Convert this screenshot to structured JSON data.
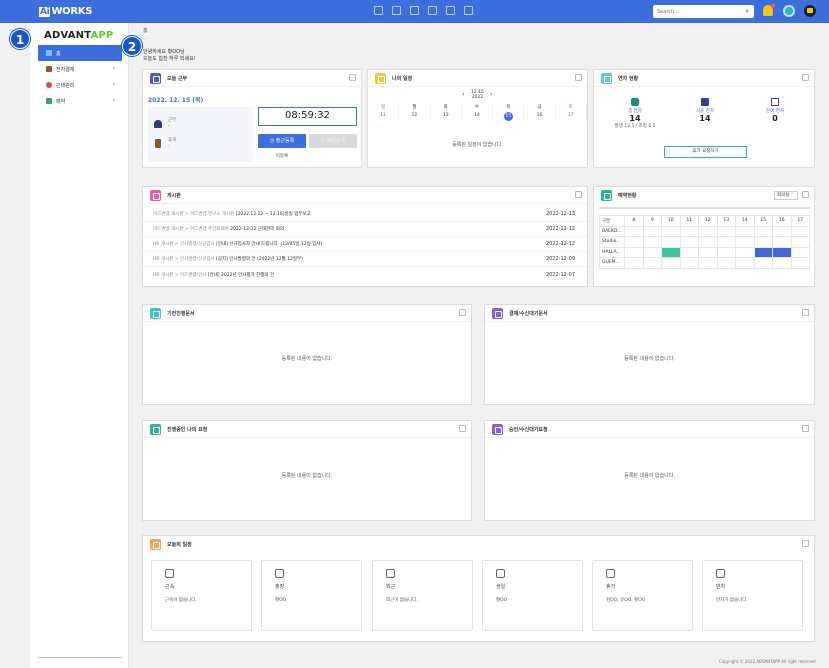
{
  "header": {
    "logo_ai": "Ai",
    "logo_works": "WORKS",
    "search_placeholder": "Search..."
  },
  "sidebar": {
    "brand_a": "ADVANT",
    "brand_b": "APP",
    "items": [
      {
        "label": "홈",
        "color": "#3d6ee0"
      },
      {
        "label": "전자결재",
        "color": "#a0522d"
      },
      {
        "label": "근태관리",
        "color": "#e04a3c"
      },
      {
        "label": "예약",
        "color": "#3aa36b"
      }
    ]
  },
  "badges": [
    "1",
    "2"
  ],
  "breadcrumb": "홈",
  "greeting": {
    "line1": "안녕하세요 황OO님",
    "line2": "오늘도 힘찬 하루 되세요!"
  },
  "attendance": {
    "title": "오늘 근무",
    "date": "2022. 12. 15 (목)",
    "time": "08:59:32",
    "checkin_label": "근무",
    "checkin_value": "-",
    "checkout_label": "휴게",
    "checkout_value": "-",
    "checkin_btn": "출근등록",
    "checkout_btn": "퇴근등록",
    "status": "미등록"
  },
  "schedule": {
    "title": "나의 일정",
    "month": "12.15",
    "year": "2022",
    "days": [
      {
        "dow": "일",
        "num": "11"
      },
      {
        "dow": "월",
        "num": "12"
      },
      {
        "dow": "화",
        "num": "13"
      },
      {
        "dow": "수",
        "num": "14"
      },
      {
        "dow": "목",
        "num": "15"
      },
      {
        "dow": "금",
        "num": "16"
      },
      {
        "dow": "토",
        "num": "17"
      }
    ],
    "empty": "등록된 일정이 없습니다."
  },
  "leave": {
    "title": "연차 현황",
    "total_label": "총 연차",
    "total": "14",
    "used_label": "사용 연차",
    "used": "14",
    "remain_label": "잔여 연차",
    "remain": "0",
    "note": "발생 13.5 / 조정 0.5",
    "btn": "휴가 요청하기"
  },
  "board": {
    "title": "게시판",
    "rows": [
      {
        "path": "어드밴앱 게시판 > 어드밴앱 연구소 게시판",
        "title": "[2022.12.12 ~ 12.16]일일 업무보고",
        "date": "2022-12-13"
      },
      {
        "path": "어드밴앱 게시판 > 어드밴앱 주간회의록",
        "title": "2022-12-12 근태관리 회의",
        "date": "2022-12-12"
      },
      {
        "path": "HR 게시판 > 인사발령/신규입사",
        "title": "[안내] 신규입사자 안내 드립니다. (12/05일,12일 입사)",
        "date": "2022-12-12"
      },
      {
        "path": "HR 게시판 > 인사발령/신규입사",
        "title": "[공지] 인사발령의 건 (2022년 12월 12일부)",
        "date": "2022-12-09"
      },
      {
        "path": "HR 게시판 > 어드밴앱/인사",
        "title": "[안내] 2022년 인사평가 진행의 건",
        "date": "2022-12-07"
      }
    ]
  },
  "reservation": {
    "title": "예약현황",
    "select": "회의실",
    "header": "구분",
    "hours": [
      "8",
      "9",
      "10",
      "11",
      "12",
      "13",
      "14",
      "15",
      "16",
      "17"
    ],
    "rooms": [
      {
        "name": "BAEKD...",
        "cells": []
      },
      {
        "name": "Studio...",
        "cells": []
      },
      {
        "name": "HALLA...",
        "cells": [
          {
            "col": 2,
            "c": "g"
          },
          {
            "col": 7,
            "c": "b"
          },
          {
            "col": 8,
            "c": "b"
          }
        ]
      },
      {
        "name": "GUEM...",
        "cells": []
      }
    ]
  },
  "panels": {
    "draft": {
      "title": "기안진행문서",
      "empty": "등록된 내용이 없습니다."
    },
    "approval": {
      "title": "결재/수신대기문서",
      "empty": "등록된 내용이 없습니다."
    },
    "myreq": {
      "title": "진행중인 나의 요청",
      "empty": "등록된 내용이 없습니다."
    },
    "approve_req": {
      "title": "승인/수신대기요청",
      "empty": "등록된 내용이 없습니다."
    }
  },
  "today": {
    "title": "오늘의 일정",
    "items": [
      {
        "title": "근속",
        "desc": "근속이 없습니다."
      },
      {
        "title": "출장",
        "desc": "황OO"
      },
      {
        "title": "외근",
        "desc": "외근이 없습니다."
      },
      {
        "title": "생일",
        "desc": "황OO"
      },
      {
        "title": "휴가",
        "desc": "김OO, 유OO, 황OO"
      },
      {
        "title": "반차",
        "desc": "반차가 없습니다."
      }
    ]
  },
  "footer": "Copyright © 2022 ADVANTAPP All right reserved.",
  "colors": {
    "brand": "#3d6ee0",
    "accent_green": "#5fc63b"
  }
}
